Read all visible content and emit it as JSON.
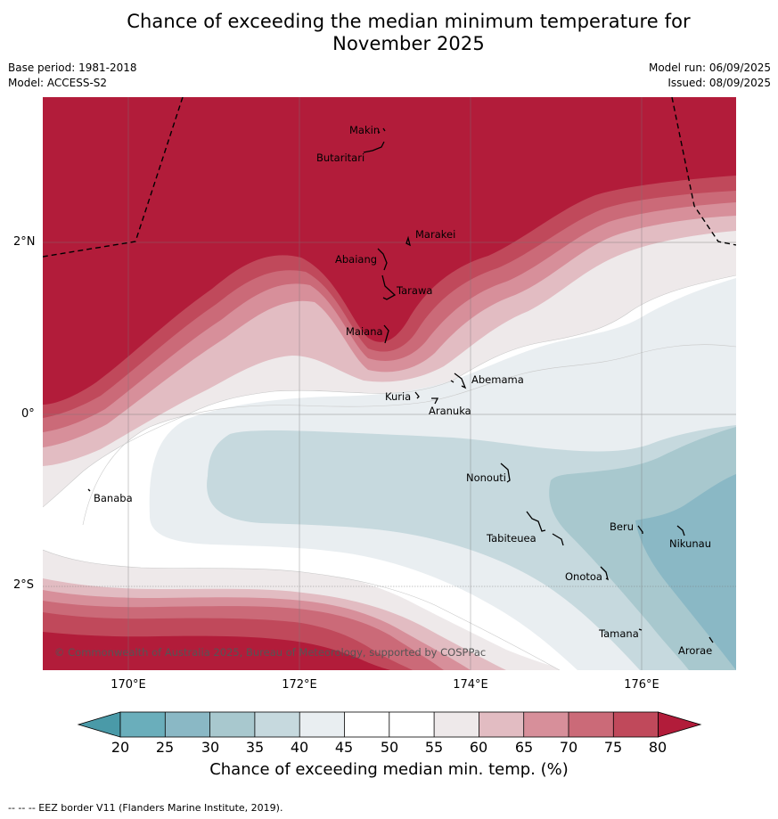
{
  "title_line1": "Chance of exceeding the median minimum temperature for",
  "title_line2": "November 2025",
  "meta": {
    "base_period": "Base period: 1981-2018",
    "model": "Model: ACCESS-S2",
    "model_run": "Model run: 06/09/2025",
    "issued": "Issued: 08/09/2025"
  },
  "axes": {
    "lat_labels": [
      "2°N",
      "0°",
      "2°S"
    ],
    "lon_labels": [
      "170°E",
      "172°E",
      "174°E",
      "176°E"
    ]
  },
  "islands": [
    "Makin",
    "Butaritari",
    "Marakei",
    "Abaiang",
    "Tarawa",
    "Maiana",
    "Abemama",
    "Kuria",
    "Aranuka",
    "Nonouti",
    "Banaba",
    "Beru",
    "Nikunau",
    "Tabiteuea",
    "Onotoa",
    "Tamana",
    "Arorae"
  ],
  "copyright": "© Commonwealth of Australia 2025, Bureau of Meteorology, supported by COSPPac",
  "colorbar": {
    "ticks": [
      "20",
      "25",
      "30",
      "35",
      "40",
      "45",
      "50",
      "55",
      "60",
      "65",
      "70",
      "75",
      "80"
    ],
    "label": "Chance of exceeding median min. temp. (%)",
    "colors": {
      "below_20": "#4a9aa8",
      "20_25": "#6aaebb",
      "25_30": "#8ab8c5",
      "30_35": "#a8c8ce",
      "35_40": "#c6d9de",
      "40_45": "#e9eef1",
      "45_50": "#ffffff",
      "50_55": "#ffffff",
      "55_60": "#eee9ea",
      "60_65": "#e2bcc2",
      "65_70": "#d78f9a",
      "70_75": "#cb6a78",
      "75_80": "#c0495b",
      "above_80": "#b21c3a"
    }
  },
  "footer": "--  --  -- EEZ border V11 (Flanders Marine Institute, 2019)."
}
